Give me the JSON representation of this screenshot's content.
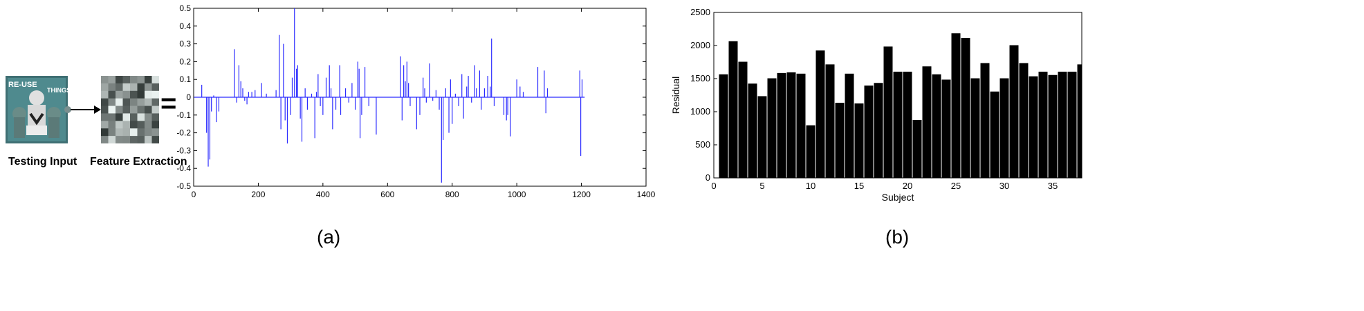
{
  "panel_a": {
    "caption": "(a)",
    "input_label": "Testing Input",
    "feature_label": "Feature Extraction",
    "poster_text_left": "RE-USE",
    "poster_text_right": "THINGS",
    "equals": "="
  },
  "panel_b": {
    "caption": "(b)"
  },
  "colors": {
    "signal": "#2b2bff",
    "bar": "#000000",
    "axis": "#000000"
  },
  "chart_data": [
    {
      "type": "line",
      "title": "",
      "xlabel": "",
      "ylabel": "",
      "xlim": [
        0,
        1400
      ],
      "ylim": [
        -0.5,
        0.5
      ],
      "xticks": [
        0,
        200,
        400,
        600,
        800,
        1000,
        1200,
        1400
      ],
      "yticks": [
        -0.5,
        -0.4,
        -0.3,
        -0.2,
        -0.1,
        0,
        0.1,
        0.2,
        0.3,
        0.4,
        0.5
      ],
      "x_range": [
        1,
        1210
      ],
      "spikes": [
        [
          25,
          0.07
        ],
        [
          40,
          -0.2
        ],
        [
          45,
          -0.39
        ],
        [
          50,
          -0.35
        ],
        [
          55,
          -0.08
        ],
        [
          62,
          0.01
        ],
        [
          70,
          -0.14
        ],
        [
          78,
          -0.08
        ],
        [
          126,
          0.27
        ],
        [
          133,
          -0.03
        ],
        [
          140,
          0.18
        ],
        [
          146,
          0.09
        ],
        [
          152,
          0.05
        ],
        [
          158,
          -0.02
        ],
        [
          165,
          -0.04
        ],
        [
          170,
          0.03
        ],
        [
          180,
          0.03
        ],
        [
          190,
          0.04
        ],
        [
          210,
          0.08
        ],
        [
          225,
          0.02
        ],
        [
          255,
          0.04
        ],
        [
          265,
          0.35
        ],
        [
          270,
          -0.18
        ],
        [
          278,
          0.3
        ],
        [
          283,
          -0.13
        ],
        [
          290,
          -0.26
        ],
        [
          300,
          -0.1
        ],
        [
          305,
          0.11
        ],
        [
          312,
          0.5
        ],
        [
          318,
          0.16
        ],
        [
          322,
          0.18
        ],
        [
          330,
          -0.12
        ],
        [
          335,
          -0.25
        ],
        [
          345,
          0.05
        ],
        [
          352,
          -0.07
        ],
        [
          365,
          0.02
        ],
        [
          375,
          -0.23
        ],
        [
          380,
          0.03
        ],
        [
          385,
          0.13
        ],
        [
          392,
          -0.05
        ],
        [
          400,
          -0.1
        ],
        [
          410,
          0.11
        ],
        [
          420,
          0.18
        ],
        [
          425,
          0.05
        ],
        [
          430,
          -0.18
        ],
        [
          440,
          -0.07
        ],
        [
          452,
          0.18
        ],
        [
          455,
          -0.1
        ],
        [
          470,
          0.05
        ],
        [
          480,
          -0.03
        ],
        [
          490,
          0.08
        ],
        [
          500,
          -0.07
        ],
        [
          508,
          0.2
        ],
        [
          512,
          0.16
        ],
        [
          515,
          -0.23
        ],
        [
          520,
          -0.1
        ],
        [
          530,
          0.17
        ],
        [
          542,
          -0.05
        ],
        [
          565,
          -0.21
        ],
        [
          640,
          0.23
        ],
        [
          645,
          -0.13
        ],
        [
          650,
          0.18
        ],
        [
          655,
          0.09
        ],
        [
          660,
          0.2
        ],
        [
          665,
          0.08
        ],
        [
          670,
          -0.05
        ],
        [
          690,
          -0.18
        ],
        [
          700,
          -0.1
        ],
        [
          710,
          0.11
        ],
        [
          715,
          0.05
        ],
        [
          720,
          -0.03
        ],
        [
          730,
          0.19
        ],
        [
          740,
          -0.02
        ],
        [
          750,
          0.04
        ],
        [
          760,
          -0.07
        ],
        [
          767,
          -0.48
        ],
        [
          772,
          -0.24
        ],
        [
          780,
          0.05
        ],
        [
          790,
          -0.2
        ],
        [
          795,
          0.1
        ],
        [
          800,
          -0.15
        ],
        [
          810,
          0.02
        ],
        [
          820,
          -0.05
        ],
        [
          830,
          0.13
        ],
        [
          835,
          -0.12
        ],
        [
          845,
          0.06
        ],
        [
          850,
          0.12
        ],
        [
          860,
          -0.03
        ],
        [
          870,
          0.18
        ],
        [
          875,
          0.05
        ],
        [
          885,
          0.15
        ],
        [
          890,
          -0.07
        ],
        [
          900,
          0.05
        ],
        [
          910,
          0.12
        ],
        [
          918,
          0.06
        ],
        [
          922,
          0.33
        ],
        [
          930,
          -0.05
        ],
        [
          960,
          -0.1
        ],
        [
          968,
          -0.13
        ],
        [
          972,
          -0.1
        ],
        [
          980,
          -0.22
        ],
        [
          1000,
          0.1
        ],
        [
          1010,
          0.06
        ],
        [
          1020,
          0.03
        ],
        [
          1065,
          0.17
        ],
        [
          1085,
          0.15
        ],
        [
          1090,
          -0.09
        ],
        [
          1095,
          0.05
        ],
        [
          1195,
          0.15
        ],
        [
          1198,
          -0.33
        ],
        [
          1202,
          0.1
        ]
      ]
    },
    {
      "type": "bar",
      "title": "",
      "xlabel": "Subject",
      "ylabel": "Residual",
      "xlim": [
        0,
        38
      ],
      "ylim": [
        0,
        2500
      ],
      "xticks": [
        0,
        5,
        10,
        15,
        20,
        25,
        30,
        35
      ],
      "yticks": [
        0,
        500,
        1000,
        1500,
        2000,
        2500
      ],
      "categories": [
        1,
        2,
        3,
        4,
        5,
        6,
        7,
        8,
        9,
        10,
        11,
        12,
        13,
        14,
        15,
        16,
        17,
        18,
        19,
        20,
        21,
        22,
        23,
        24,
        25,
        26,
        27,
        28,
        29,
        30,
        31,
        32,
        33,
        34,
        35,
        36,
        37,
        38
      ],
      "values": [
        1570,
        2070,
        1760,
        1430,
        1240,
        1510,
        1590,
        1600,
        1580,
        800,
        1930,
        1720,
        1140,
        1580,
        1130,
        1400,
        1440,
        1990,
        1610,
        1610,
        880,
        1690,
        1570,
        1490,
        2190,
        2120,
        1510,
        1740,
        1310,
        1510,
        2010,
        1740,
        1540,
        1610,
        1560,
        1610,
        1610,
        1720
      ]
    }
  ]
}
